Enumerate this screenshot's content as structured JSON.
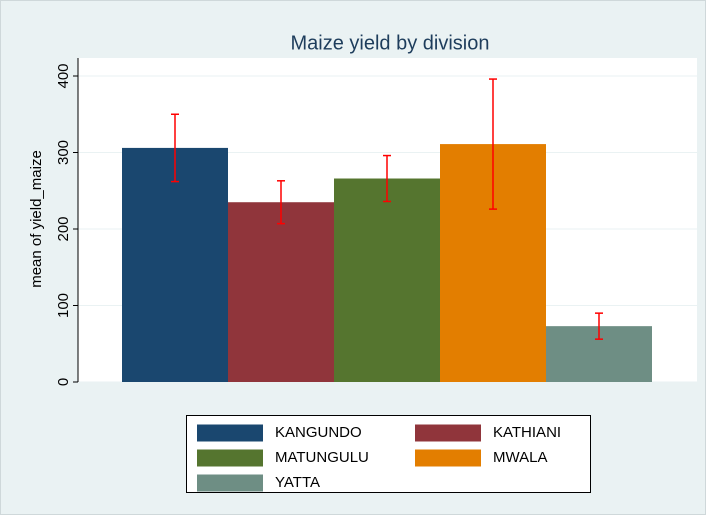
{
  "chart_data": {
    "type": "bar",
    "title": "Maize yield by division",
    "y_label": "mean of yield_maize",
    "series": [
      {
        "name": "KANGUNDO",
        "color": "#1a476f",
        "values": [
          306
        ],
        "errors": [
          44
        ]
      },
      {
        "name": "KATHIANI",
        "color": "#90353b",
        "values": [
          235
        ],
        "errors": [
          28
        ]
      },
      {
        "name": "MATUNGULU",
        "color": "#55752f",
        "values": [
          266
        ],
        "errors": [
          30
        ]
      },
      {
        "name": "MWALA",
        "color": "#e37e00",
        "values": [
          311
        ],
        "errors": [
          85
        ]
      },
      {
        "name": "YATTA",
        "color": "#6e8e84",
        "values": [
          73
        ],
        "errors": [
          17
        ]
      }
    ],
    "error_color": "#ff0000",
    "ylim": [
      0,
      400
    ],
    "yticks": [
      0,
      100,
      200,
      300,
      400
    ],
    "grid": true
  }
}
